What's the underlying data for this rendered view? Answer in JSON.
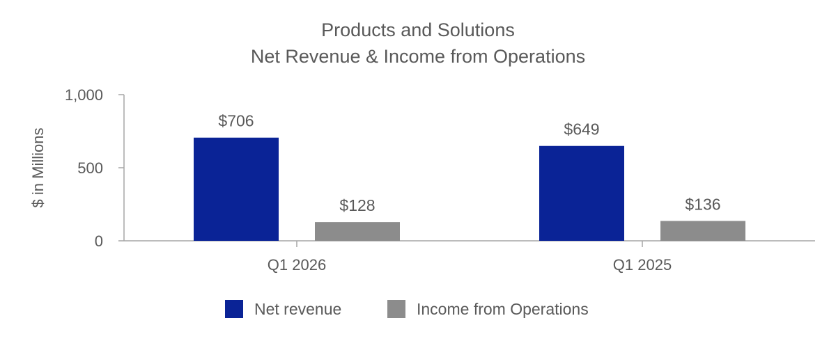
{
  "chart_data": {
    "type": "bar",
    "title": [
      "Products and Solutions",
      "Net Revenue & Income from Operations"
    ],
    "ylabel": "$ in Millions",
    "xlabel": "",
    "ylim": [
      0,
      1000
    ],
    "yticks": [
      0,
      500,
      1000
    ],
    "ytick_labels": [
      "0",
      "500",
      "1,000"
    ],
    "categories": [
      "Q1 2026",
      "Q1 2025"
    ],
    "series": [
      {
        "name": "Net revenue",
        "color": "#0a2396",
        "values": [
          706,
          649
        ],
        "labels": [
          "$706",
          "$649"
        ]
      },
      {
        "name": "Income from Operations",
        "color": "#8c8c8c",
        "values": [
          128,
          136
        ],
        "labels": [
          "$128",
          "$136"
        ]
      }
    ],
    "legend": "bottom",
    "grid": false
  }
}
